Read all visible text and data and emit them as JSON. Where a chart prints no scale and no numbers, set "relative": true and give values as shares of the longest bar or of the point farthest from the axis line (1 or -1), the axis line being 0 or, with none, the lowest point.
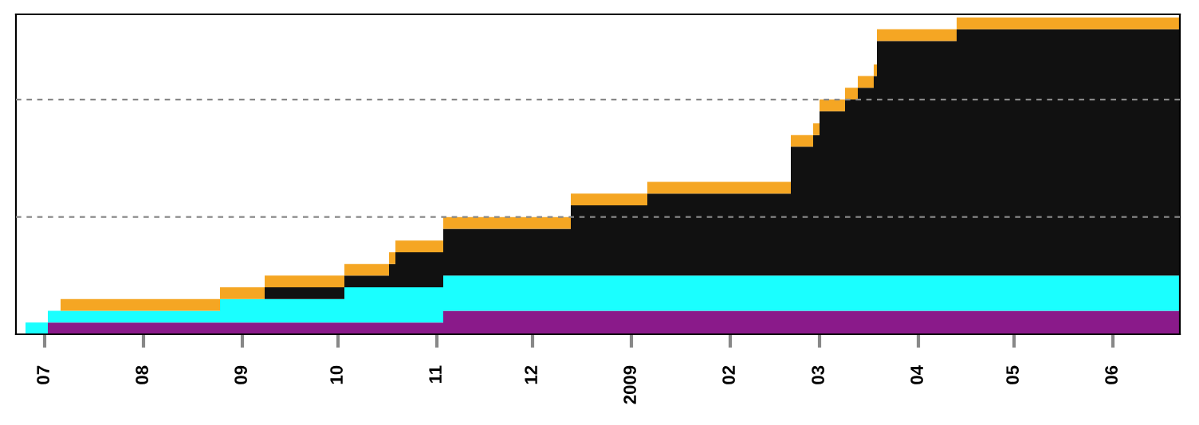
{
  "chart_data": {
    "type": "area",
    "stacked": true,
    "relative": true,
    "x": [
      "2008-06-25",
      "2008-07-02",
      "2008-07-02",
      "2008-07-06",
      "2008-07-06",
      "2008-08-25",
      "2008-08-25",
      "2008-09-08",
      "2008-09-08",
      "2008-10-03",
      "2008-10-03",
      "2008-10-17",
      "2008-10-17",
      "2008-10-19",
      "2008-10-19",
      "2008-11-03",
      "2008-11-03",
      "2008-12-13",
      "2008-12-13",
      "2009-01-06",
      "2009-01-06",
      "2009-02-20",
      "2009-02-20",
      "2009-02-27",
      "2009-02-27",
      "2009-03-01",
      "2009-03-01",
      "2009-03-09",
      "2009-03-09",
      "2009-03-13",
      "2009-03-13",
      "2009-03-18",
      "2009-03-18",
      "2009-03-19",
      "2009-03-19",
      "2009-04-13",
      "2009-04-13",
      "2009-06-22",
      "2009-06-22"
    ],
    "series": [
      {
        "color": "#8a1a8a",
        "values": [
          0,
          0,
          0.037,
          0.037,
          0.037,
          0.037,
          0.037,
          0.037,
          0.037,
          0.037,
          0.037,
          0.037,
          0.037,
          0.037,
          0.037,
          0.037,
          0.074,
          0.074,
          0.074,
          0.074,
          0.074,
          0.074,
          0.074,
          0.074,
          0.074,
          0.074,
          0.074,
          0.074,
          0.074,
          0.074,
          0.074,
          0.074,
          0.074,
          0.074,
          0.074,
          0.074,
          0.074,
          0.074,
          0.074
        ]
      },
      {
        "color": "#1affff",
        "values": [
          0.037,
          0.037,
          0.037,
          0.037,
          0.037,
          0.037,
          0.074,
          0.074,
          0.074,
          0.074,
          0.111,
          0.111,
          0.111,
          0.111,
          0.111,
          0.111,
          0.111,
          0.111,
          0.111,
          0.111,
          0.111,
          0.111,
          0.111,
          0.111,
          0.111,
          0.111,
          0.111,
          0.111,
          0.111,
          0.111,
          0.111,
          0.111,
          0.111,
          0.111,
          0.111,
          0.111,
          0.111,
          0.111,
          0.111
        ]
      },
      {
        "color": "#111111",
        "values": [
          0,
          0,
          0,
          0,
          0,
          0,
          0,
          0,
          0.037,
          0.037,
          0.037,
          0.037,
          0.074,
          0.074,
          0.111,
          0.111,
          0.148,
          0.148,
          0.222,
          0.222,
          0.259,
          0.259,
          0.407,
          0.407,
          0.444,
          0.444,
          0.519,
          0.519,
          0.556,
          0.556,
          0.593,
          0.593,
          0.63,
          0.63,
          0.741,
          0.741,
          0.778,
          0.778,
          0.778
        ]
      },
      {
        "color": "#f5a623",
        "values": [
          0,
          0,
          0,
          0,
          0.037,
          0.037,
          0.037,
          0.037,
          0.037,
          0.037,
          0.037,
          0.037,
          0.037,
          0.037,
          0.037,
          0.037,
          0.037,
          0.037,
          0.037,
          0.037,
          0.037,
          0.037,
          0.037,
          0.037,
          0.037,
          0.037,
          0.037,
          0.037,
          0.037,
          0.037,
          0.037,
          0.037,
          0.037,
          0.037,
          0.037,
          0.037,
          0.037,
          0.037,
          0.037
        ]
      }
    ],
    "xlim": [
      "2008-06-22",
      "2009-06-22"
    ],
    "xticks": [
      {
        "value": "2008-07-01",
        "label": "07"
      },
      {
        "value": "2008-08-01",
        "label": "08"
      },
      {
        "value": "2008-09-01",
        "label": "09"
      },
      {
        "value": "2008-10-01",
        "label": "10"
      },
      {
        "value": "2008-11-01",
        "label": "11"
      },
      {
        "value": "2008-12-01",
        "label": "12"
      },
      {
        "value": "2009-01-01",
        "label": "2009"
      },
      {
        "value": "2009-02-01",
        "label": "02"
      },
      {
        "value": "2009-03-01",
        "label": "03"
      },
      {
        "value": "2009-04-01",
        "label": "04"
      },
      {
        "value": "2009-05-01",
        "label": "05"
      },
      {
        "value": "2009-06-01",
        "label": "06"
      }
    ],
    "ref_lines": [
      {
        "axis": "y",
        "value": 0.37,
        "color": "#888888",
        "line_style": "dashed"
      },
      {
        "axis": "y",
        "value": 0.741,
        "color": "#888888",
        "line_style": "dashed"
      }
    ]
  }
}
